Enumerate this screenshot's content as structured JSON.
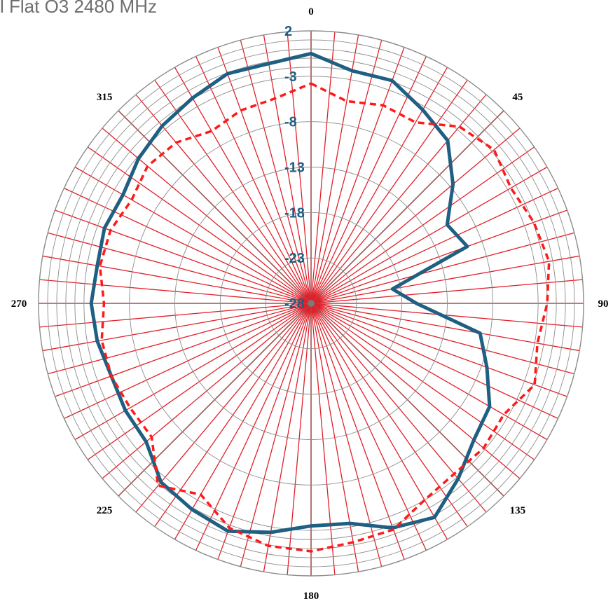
{
  "title": "l Flat O3 2480 MHz",
  "colors": {
    "series1": "#1f5f82",
    "series2": "#ff1a1a",
    "spokes": "#e0202a",
    "grid": "#8c8c8c"
  },
  "chart_data": {
    "type": "polar-line",
    "title": "l Flat O3 2480 MHz",
    "angle_ticks": [
      "0",
      "45",
      "90",
      "135",
      "180",
      "225",
      "270",
      "315"
    ],
    "angle_tick_values": [
      0,
      45,
      90,
      135,
      180,
      225,
      270,
      315
    ],
    "r_ticks": [
      "2",
      "-3",
      "-8",
      "-13",
      "-18",
      "-23",
      "-28"
    ],
    "r_tick_values": [
      2,
      -3,
      -8,
      -13,
      -18,
      -23,
      -28
    ],
    "r_range": [
      -28,
      2
    ],
    "grid": true,
    "spokes_every_deg": 5,
    "angles_deg": [
      0,
      10,
      20,
      30,
      40,
      50,
      60,
      70,
      80,
      90,
      100,
      110,
      120,
      130,
      140,
      150,
      160,
      170,
      180,
      190,
      200,
      210,
      220,
      230,
      240,
      250,
      260,
      270,
      280,
      290,
      300,
      310,
      320,
      330,
      340,
      350
    ],
    "series": [
      {
        "line_style": "solid",
        "values": [
          -0.5,
          -2,
          -1.9,
          -3.4,
          -4.6,
          -7.6,
          -10.7,
          -9.7,
          -18.9,
          -16.4,
          -9.1,
          -7.4,
          -5.3,
          -4.6,
          -2.8,
          -0.8,
          -1.7,
          -3.4,
          -3.5,
          -2.4,
          -1.3,
          -1.8,
          -2.3,
          -4.3,
          -4.4,
          -4.6,
          -4.1,
          -3.8,
          -4.1,
          -3.8,
          -4.1,
          -3.2,
          -2.5,
          -1.9,
          -1.1,
          -1.2
        ]
      },
      {
        "line_style": "dashed",
        "values": [
          -3.8,
          -5.4,
          -4.8,
          -5,
          -2.6,
          -1.7,
          -2.6,
          -1.9,
          -1.4,
          -2,
          -2.7,
          -1.8,
          -3.5,
          -3.2,
          -3.5,
          -3,
          -1.5,
          -1.3,
          -0.7,
          -0.9,
          -1.7,
          -3.7,
          -1.8,
          -5.1,
          -5,
          -4.6,
          -4.6,
          -5.2,
          -4.4,
          -4.5,
          -5.2,
          -4.5,
          -4.9,
          -6.1,
          -5.4,
          -5.1
        ]
      }
    ]
  }
}
